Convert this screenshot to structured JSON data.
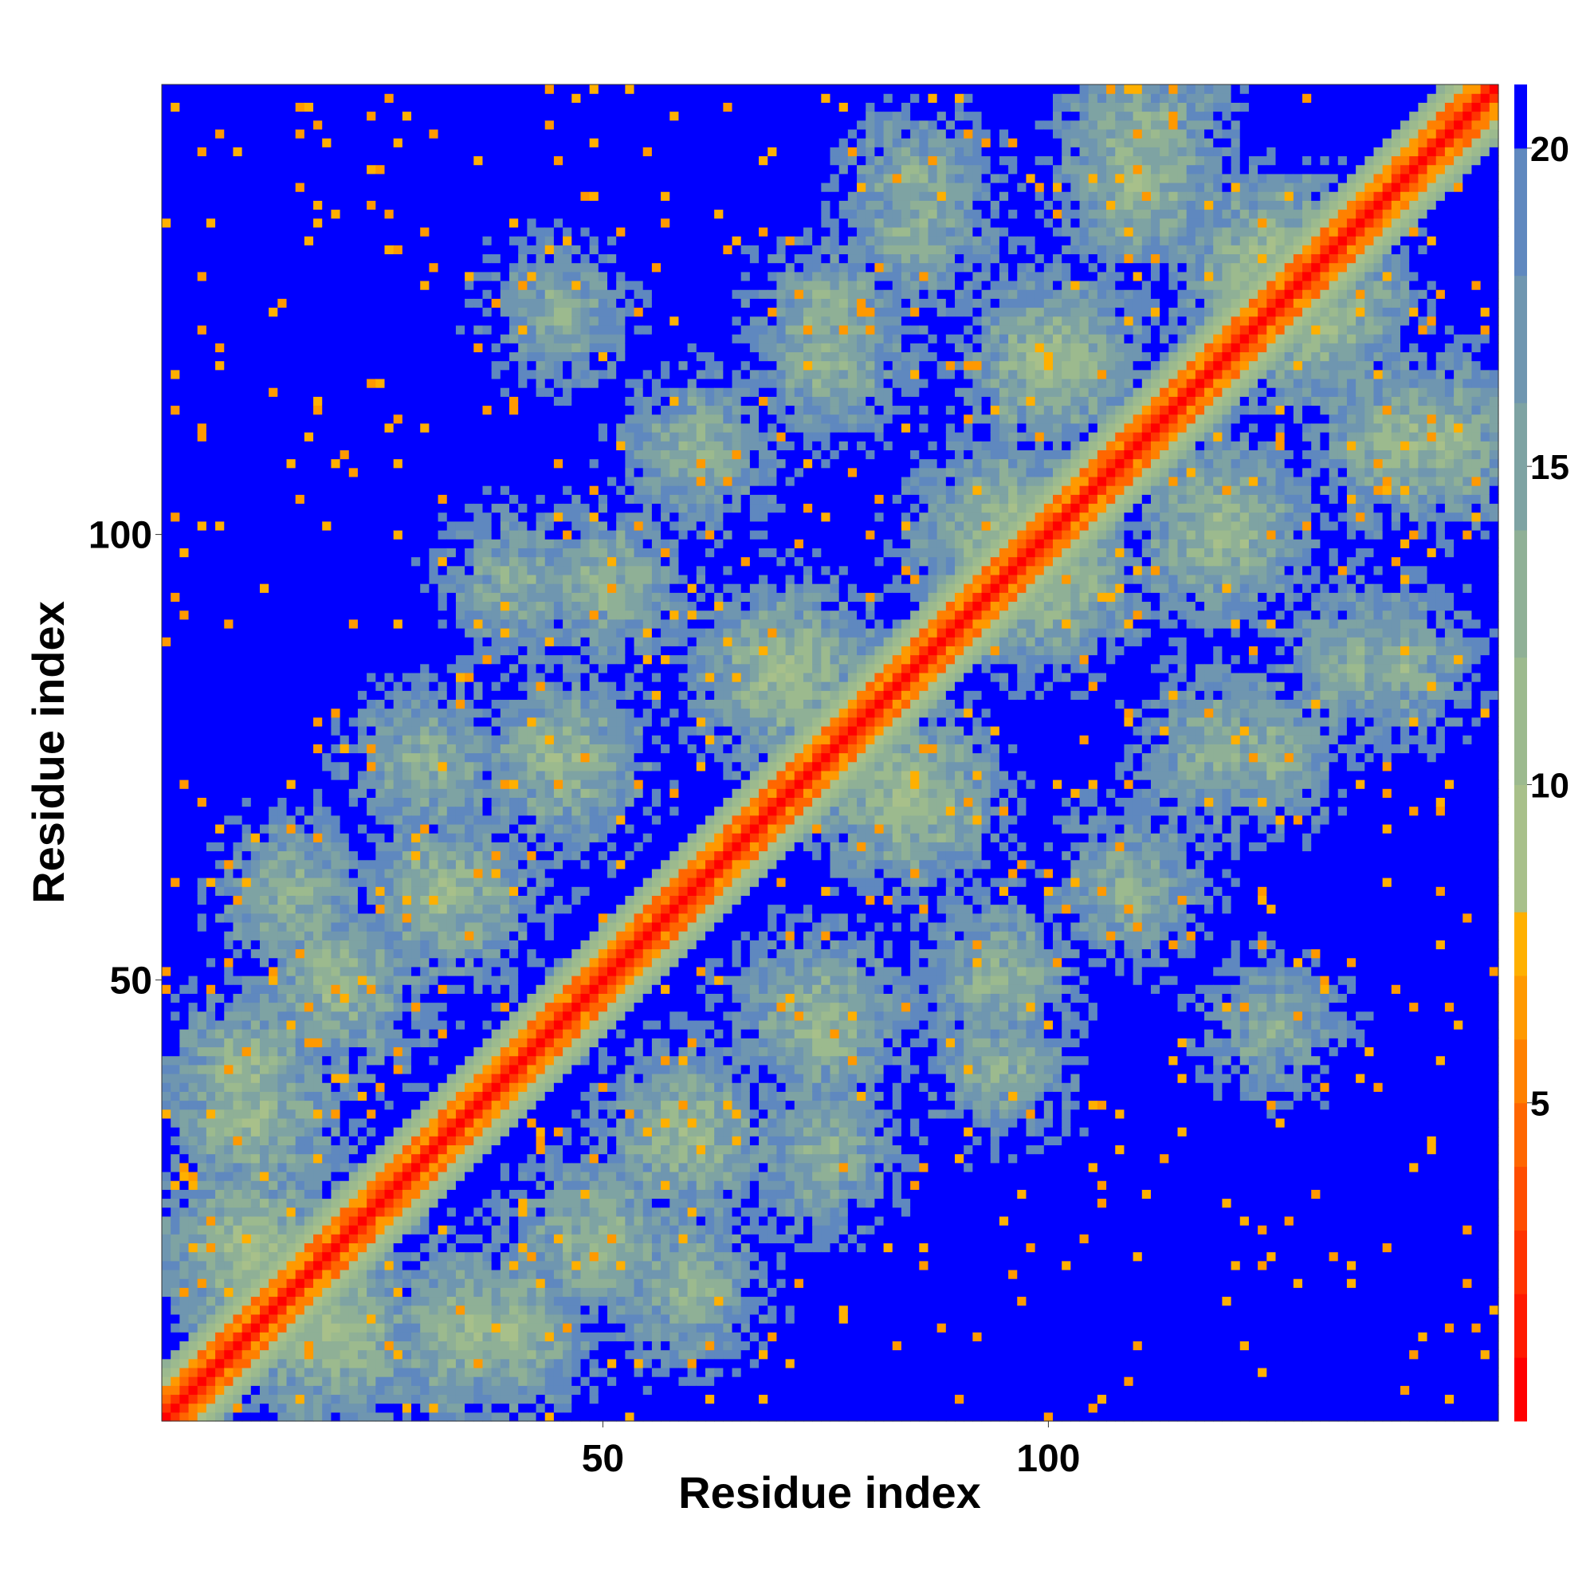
{
  "chart_data": {
    "type": "heatmap",
    "title": "",
    "xlabel": "Residue index",
    "ylabel": "Residue index",
    "n_residues": 150,
    "x_range": [
      0.5,
      150.5
    ],
    "y_range": [
      0.5,
      150.5
    ],
    "x_ticks": [
      50,
      100
    ],
    "y_ticks": [
      50,
      100
    ],
    "colorbar": {
      "range": [
        0,
        21
      ],
      "ticks": [
        5,
        10,
        15,
        20
      ],
      "bins": [
        {
          "max": 1,
          "color": "#ff0000"
        },
        {
          "max": 2,
          "color": "#ff1a00"
        },
        {
          "max": 3,
          "color": "#ff3300"
        },
        {
          "max": 4,
          "color": "#ff4d00"
        },
        {
          "max": 5,
          "color": "#ff6600"
        },
        {
          "max": 6,
          "color": "#ff8000"
        },
        {
          "max": 7,
          "color": "#ff9900"
        },
        {
          "max": 8,
          "color": "#ffb000"
        },
        {
          "max": 10,
          "color": "#a8c08a"
        },
        {
          "max": 12,
          "color": "#9cba8e"
        },
        {
          "max": 14,
          "color": "#8fb096"
        },
        {
          "max": 16,
          "color": "#7ea3a3"
        },
        {
          "max": 18,
          "color": "#6f96b0"
        },
        {
          "max": 20,
          "color": "#5f88bf"
        },
        {
          "max": 21,
          "color": "#0000ff"
        }
      ]
    },
    "description": "Symmetric residue-residue distance matrix (Angstrom). Red diagonal band of close contacts, green/blue mid-range contacts, saturated blue for distances above 20."
  }
}
